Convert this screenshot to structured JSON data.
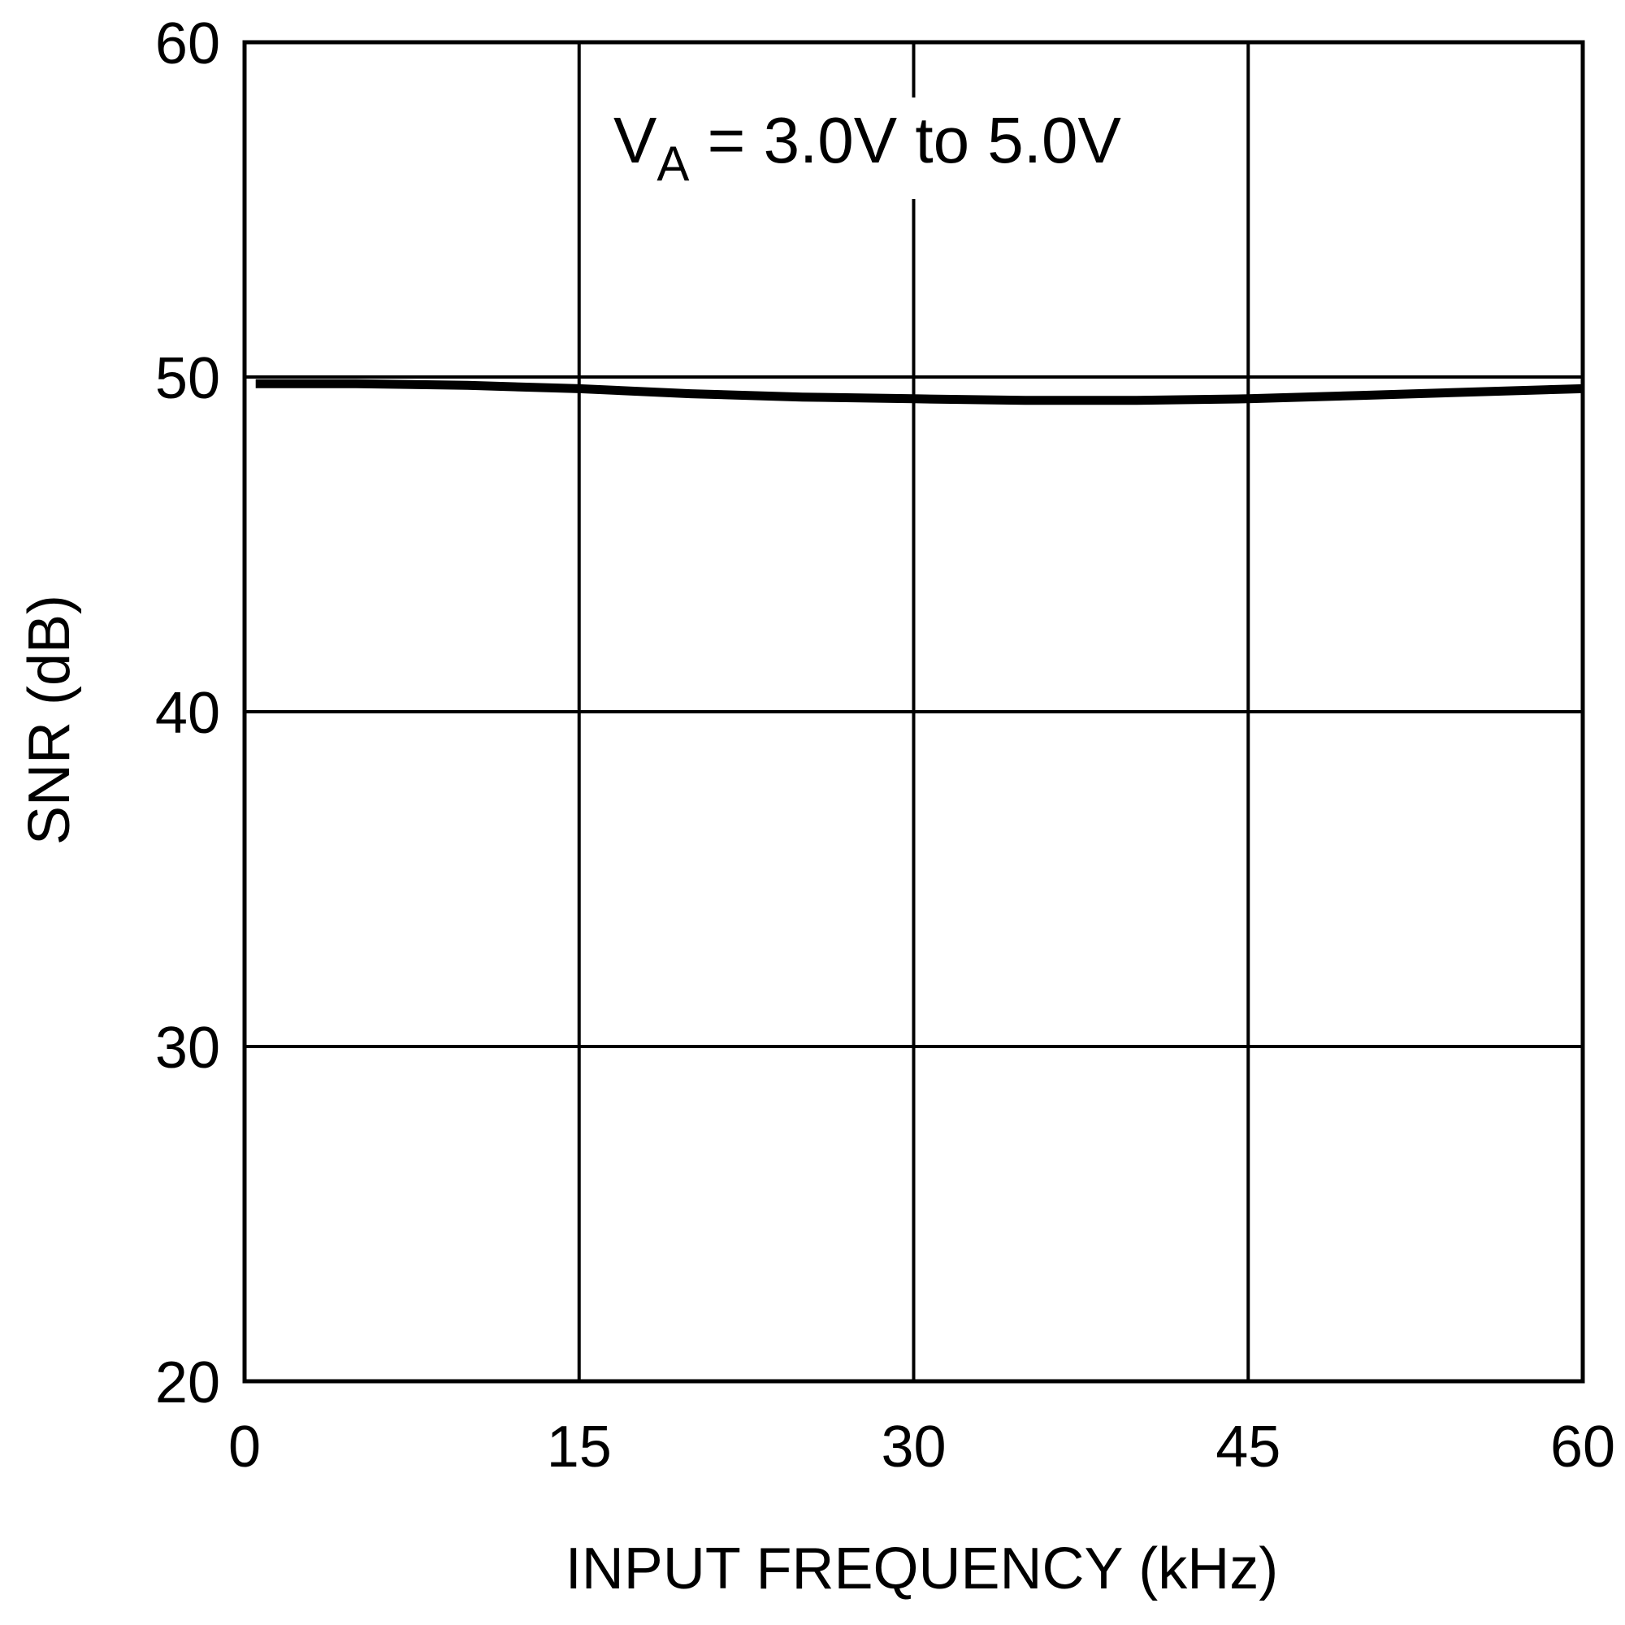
{
  "chart_data": {
    "type": "line",
    "title": "",
    "xlabel": "INPUT FREQUENCY (kHz)",
    "ylabel": "SNR (dB)",
    "xlim": [
      0,
      60
    ],
    "ylim": [
      20,
      60
    ],
    "x_ticks": [
      0,
      15,
      30,
      45,
      60
    ],
    "y_ticks": [
      20,
      30,
      40,
      50,
      60
    ],
    "x_tick_labels": [
      "0",
      "15",
      "30",
      "45",
      "60"
    ],
    "y_tick_labels": [
      "20",
      "30",
      "40",
      "50",
      "60"
    ],
    "grid": true,
    "annotation": {
      "main": "V",
      "sub": "A",
      "rest": " = 3.0V to 5.0V"
    },
    "series": [
      {
        "x": [
          0.5,
          5,
          10,
          15,
          20,
          25,
          30,
          35,
          40,
          45,
          50,
          55,
          60
        ],
        "y": [
          49.8,
          49.8,
          49.75,
          49.65,
          49.5,
          49.4,
          49.35,
          49.3,
          49.3,
          49.35,
          49.45,
          49.55,
          49.65
        ]
      }
    ],
    "colors": {
      "line": "#000000",
      "grid": "#000000",
      "frame": "#000000"
    }
  }
}
